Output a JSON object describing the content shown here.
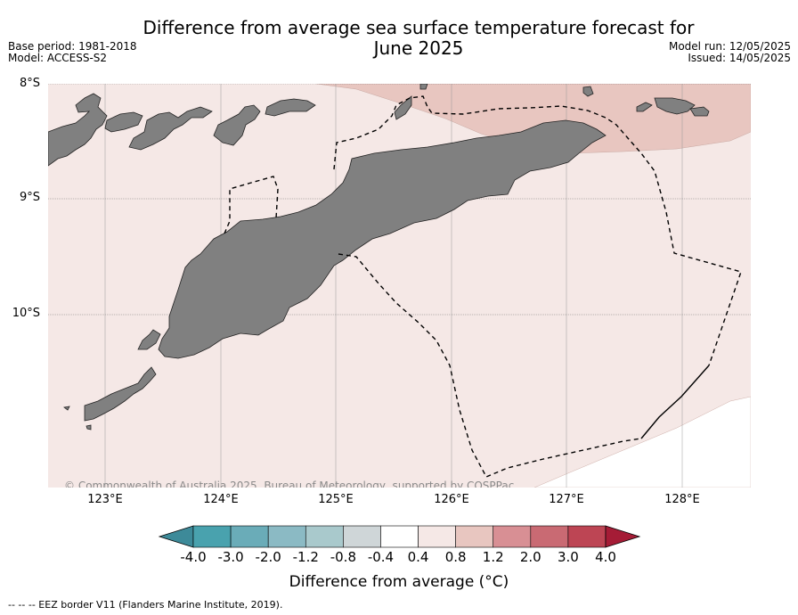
{
  "title": "Difference from average sea surface temperature forecast for June 2025",
  "title_line1": "Difference from average sea surface temperature forecast for",
  "title_line2": "June 2025",
  "base_period": "Base period: 1981-2018",
  "model": "Model: ACCESS-S2",
  "model_run": "Model run: 12/05/2025",
  "issued": "Issued: 14/05/2025",
  "lat_labels": [
    "8°S",
    "9°S",
    "10°S"
  ],
  "lon_labels": [
    "123°E",
    "124°E",
    "125°E",
    "126°E",
    "127°E",
    "128°E"
  ],
  "copyright": "© Commonwealth of Australia 2025, Bureau of Meteorology, supported by COSPPac",
  "colorbar": {
    "label": "Difference from average (°C)",
    "ticks": [
      "-4.0",
      "-3.0",
      "-2.0",
      "-1.2",
      "-0.8",
      "-0.4",
      "0.4",
      "0.8",
      "1.2",
      "2.0",
      "3.0",
      "4.0"
    ],
    "colors": [
      "#3d8a99",
      "#49a2ae",
      "#6aacb8",
      "#8bbac4",
      "#a9c9cc",
      "#cfd6d8",
      "#ffffff",
      "#f5e8e6",
      "#e8c6c0",
      "#d88f94",
      "#c96a73",
      "#bd4554",
      "#a51c36"
    ]
  },
  "colors": {
    "sea_light": "#f5e8e6",
    "sea_warm": "#e8c6c0",
    "land": "#808080"
  },
  "legend_footer": "-- -- -- EEZ border V11 (Flanders Marine Institute, 2019)."
}
